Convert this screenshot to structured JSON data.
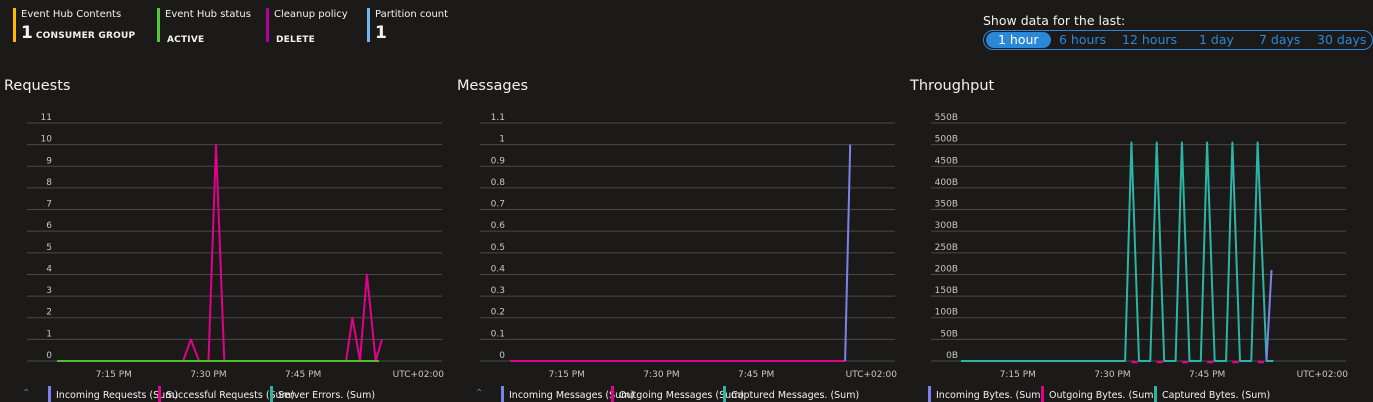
{
  "summary": {
    "tiles": [
      {
        "label": "Event Hub Contents",
        "value": "1",
        "sub": "CONSUMER GROUP",
        "color": "#ffb900"
      },
      {
        "label": "Event Hub status",
        "value": "",
        "sub": "ACTIVE",
        "color": "#57c73c"
      },
      {
        "label": "Cleanup policy",
        "value": "",
        "sub": "DELETE",
        "color": "#b4009e"
      },
      {
        "label": "Partition count",
        "value": "1",
        "sub": "",
        "color": "#6cb8f6"
      }
    ]
  },
  "time_range": {
    "label": "Show data for the last:",
    "options": [
      "1 hour",
      "6 hours",
      "12 hours",
      "1 day",
      "7 days",
      "30 days"
    ],
    "selected": "1 hour"
  },
  "colors": {
    "incoming": "#7b83eb",
    "outgoing": "#e3008c",
    "captured": "#2bb5a4",
    "server_errors": "#2bb5a4",
    "green": "#4fbf2c",
    "accent": "#2b88d8",
    "grid": "#4a4948"
  },
  "panels": {
    "requests": {
      "title": "Requests",
      "legend": [
        "Incoming Requests (Sum)",
        "Successful Requests (Sum)",
        "Server Errors. (Sum)"
      ]
    },
    "messages": {
      "title": "Messages",
      "legend": [
        "Incoming Messages (Sum)",
        "Outgoing Messages (Sum)",
        "Captured Messages. (Sum)"
      ]
    },
    "throughput": {
      "title": "Throughput",
      "legend": [
        "Incoming Bytes. (Sum)",
        "Outgoing Bytes. (Sum)",
        "Captured Bytes. (Sum)"
      ]
    }
  },
  "chart_data": [
    {
      "type": "line",
      "title": "Requests",
      "x_ticks": [
        "7:15 PM",
        "7:30 PM",
        "7:45 PM"
      ],
      "timezone": "UTC+02:00",
      "x_minutes": [
        6,
        7,
        8,
        9,
        10,
        11,
        12,
        13,
        14,
        15,
        16,
        17,
        18,
        19,
        20,
        21,
        22,
        23,
        24,
        25,
        26,
        27,
        28,
        29,
        30,
        31,
        32,
        33,
        34,
        35,
        36,
        37,
        38,
        39,
        40,
        41,
        42,
        43,
        44,
        45,
        46,
        47,
        48,
        49,
        50,
        51,
        52,
        53,
        54,
        55,
        56,
        57,
        58,
        59,
        60,
        61,
        62,
        63,
        64,
        65
      ],
      "y_ticks": [
        "0",
        "1",
        "2",
        "3",
        "4",
        "5",
        "6",
        "7",
        "8",
        "9",
        "10",
        "11"
      ],
      "ylim": [
        0,
        11
      ],
      "series": [
        {
          "name": "Successful Requests (Sum)",
          "color_key": "outgoing",
          "points": [
            [
              26,
              0
            ],
            [
              27.2,
              1
            ],
            [
              28.5,
              0
            ],
            [
              30,
              0
            ],
            [
              31.2,
              10
            ],
            [
              32.5,
              0
            ],
            [
              51.8,
              0
            ],
            [
              52.8,
              2
            ],
            [
              54,
              0
            ],
            [
              55.1,
              4
            ],
            [
              56.5,
              0
            ],
            [
              57.5,
              1
            ]
          ]
        },
        {
          "name": "Server Errors. (Sum)",
          "color_key": "green",
          "points": [
            [
              6,
              0
            ],
            [
              57,
              0
            ]
          ]
        }
      ]
    },
    {
      "type": "line",
      "title": "Messages",
      "x_ticks": [
        "7:15 PM",
        "7:30 PM",
        "7:45 PM"
      ],
      "timezone": "UTC+02:00",
      "y_ticks": [
        "0",
        "0.1",
        "0.2",
        "0.3",
        "0.4",
        "0.5",
        "0.6",
        "0.7",
        "0.8",
        "0.9",
        "1",
        "1.1"
      ],
      "ylim": [
        0,
        1.1
      ],
      "series": [
        {
          "name": "Outgoing Messages (Sum)",
          "color_key": "outgoing",
          "points": [
            [
              6,
              0
            ],
            [
              59.1,
              0
            ]
          ]
        },
        {
          "name": "Incoming Messages (Sum)",
          "color_key": "incoming",
          "points": [
            [
              59.1,
              0
            ],
            [
              59.9,
              1
            ]
          ]
        }
      ]
    },
    {
      "type": "line",
      "title": "Throughput",
      "x_ticks": [
        "7:15 PM",
        "7:30 PM",
        "7:45 PM"
      ],
      "timezone": "UTC+02:00",
      "y_ticks": [
        "0B",
        "50B",
        "100B",
        "150B",
        "200B",
        "250B",
        "300B",
        "350B",
        "400B",
        "450B",
        "500B",
        "550B"
      ],
      "ylim": [
        0,
        550
      ],
      "series": [
        {
          "name": "Captured Bytes. (Sum)",
          "color_key": "captured",
          "points": [
            [
              6,
              0
            ],
            [
              32,
              0
            ],
            [
              33,
              505
            ],
            [
              34.2,
              0
            ],
            [
              36,
              0
            ],
            [
              37,
              505
            ],
            [
              38.2,
              0
            ],
            [
              40,
              0
            ],
            [
              41,
              505
            ],
            [
              42.2,
              0
            ],
            [
              44,
              0
            ],
            [
              45,
              505
            ],
            [
              46.2,
              0
            ],
            [
              48,
              0
            ],
            [
              49,
              505
            ],
            [
              50.2,
              0
            ],
            [
              52,
              0
            ],
            [
              53,
              505
            ],
            [
              54.4,
              0
            ],
            [
              55.5,
              0
            ]
          ]
        },
        {
          "name": "Outgoing Bytes. (Sum)",
          "color_key": "outgoing",
          "points": [
            [
              33,
              0
            ],
            [
              34,
              0
            ],
            [
              37,
              0
            ],
            [
              38,
              0
            ],
            [
              41,
              0
            ],
            [
              42,
              0
            ],
            [
              45,
              0
            ],
            [
              46,
              0
            ],
            [
              49,
              0
            ],
            [
              50,
              0
            ],
            [
              53,
              0
            ],
            [
              54,
              0
            ]
          ]
        },
        {
          "name": "Incoming Bytes. (Sum)",
          "color_key": "incoming",
          "points": [
            [
              54.4,
              0
            ],
            [
              55.2,
              210
            ]
          ]
        }
      ]
    }
  ]
}
